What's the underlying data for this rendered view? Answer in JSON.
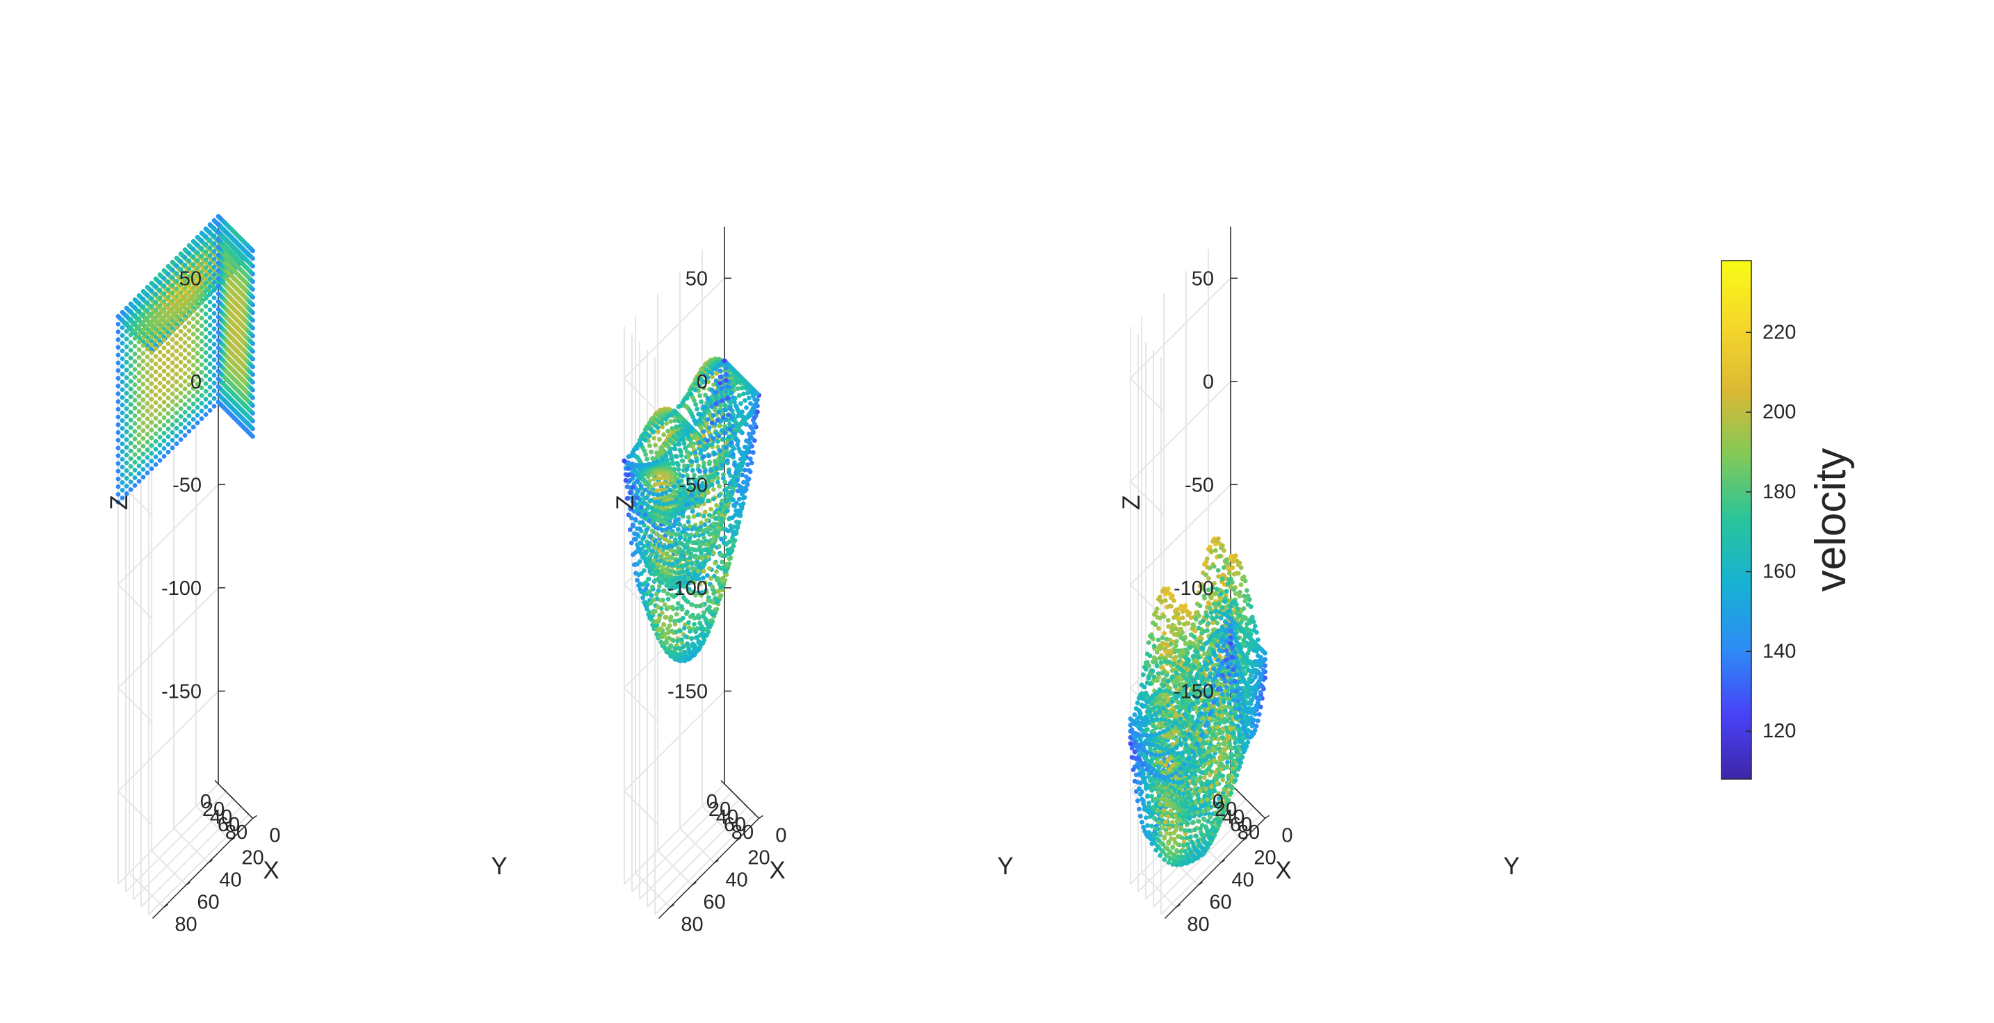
{
  "chart_data": [
    {
      "type": "scatter",
      "subtype": "3d-scatter",
      "shape": "cube",
      "xlabel": "X",
      "ylabel": "Y",
      "zlabel": "Z",
      "xlim": [
        0,
        90
      ],
      "ylim": [
        0,
        90
      ],
      "zlim": [
        -195,
        75
      ],
      "xticks": [
        "0",
        "20",
        "40",
        "60",
        "80"
      ],
      "yticks": [
        "0",
        "20",
        "40",
        "60",
        "80"
      ],
      "zticks": [
        "50",
        "0",
        "-50",
        "-100",
        "-150"
      ],
      "grid": true,
      "points": {
        "grid_n": 25,
        "x_range": [
          0,
          90
        ],
        "y_range": [
          0,
          90
        ],
        "z_range": [
          -10,
          80
        ]
      },
      "velocity": {
        "surface_min": 140,
        "core_max": 200,
        "top_peak": 215
      }
    },
    {
      "type": "scatter",
      "subtype": "3d-scatter",
      "shape": "bowl",
      "xlabel": "X",
      "ylabel": "Y",
      "zlabel": "Z",
      "xlim": [
        0,
        90
      ],
      "ylim": [
        0,
        90
      ],
      "zlim": [
        -195,
        75
      ],
      "xticks": [
        "0",
        "20",
        "40",
        "60",
        "80"
      ],
      "yticks": [
        "0",
        "20",
        "40",
        "60",
        "80"
      ],
      "zticks": [
        "50",
        "0",
        "-50",
        "-100",
        "-150"
      ],
      "grid": true,
      "points": {
        "grid_n": 25,
        "rim_z": [
          10,
          25
        ],
        "bottom_z": -100,
        "x_range": [
          0,
          90
        ],
        "y_range": [
          0,
          90
        ]
      },
      "velocity": {
        "min": 115,
        "max": 210
      }
    },
    {
      "type": "scatter",
      "subtype": "3d-scatter",
      "shape": "bowl-spread",
      "xlabel": "X",
      "ylabel": "Y",
      "zlabel": "Z",
      "xlim": [
        0,
        90
      ],
      "ylim": [
        0,
        90
      ],
      "zlim": [
        -195,
        75
      ],
      "xticks": [
        "0",
        "20",
        "40",
        "60",
        "80"
      ],
      "yticks": [
        "0",
        "20",
        "40",
        "60",
        "80"
      ],
      "zticks": [
        "50",
        "0",
        "-50",
        "-100",
        "-150"
      ],
      "grid": true,
      "points": {
        "grid_n": 25,
        "rim_z": [
          -115,
          -60
        ],
        "bottom_z": -195,
        "x_range": [
          0,
          90
        ],
        "y_range": [
          0,
          90
        ]
      },
      "velocity": {
        "min": 115,
        "max": 215
      }
    }
  ],
  "colorbar": {
    "label": "velocity",
    "min": 108,
    "max": 238,
    "ticks": [
      120,
      140,
      160,
      180,
      200,
      220
    ],
    "colormap": "parula",
    "colors": [
      "#3e26a8",
      "#4743f8",
      "#2d8cf5",
      "#17b1d4",
      "#29c49b",
      "#82c958",
      "#dcb934",
      "#f5d72b",
      "#f9fb15"
    ]
  }
}
